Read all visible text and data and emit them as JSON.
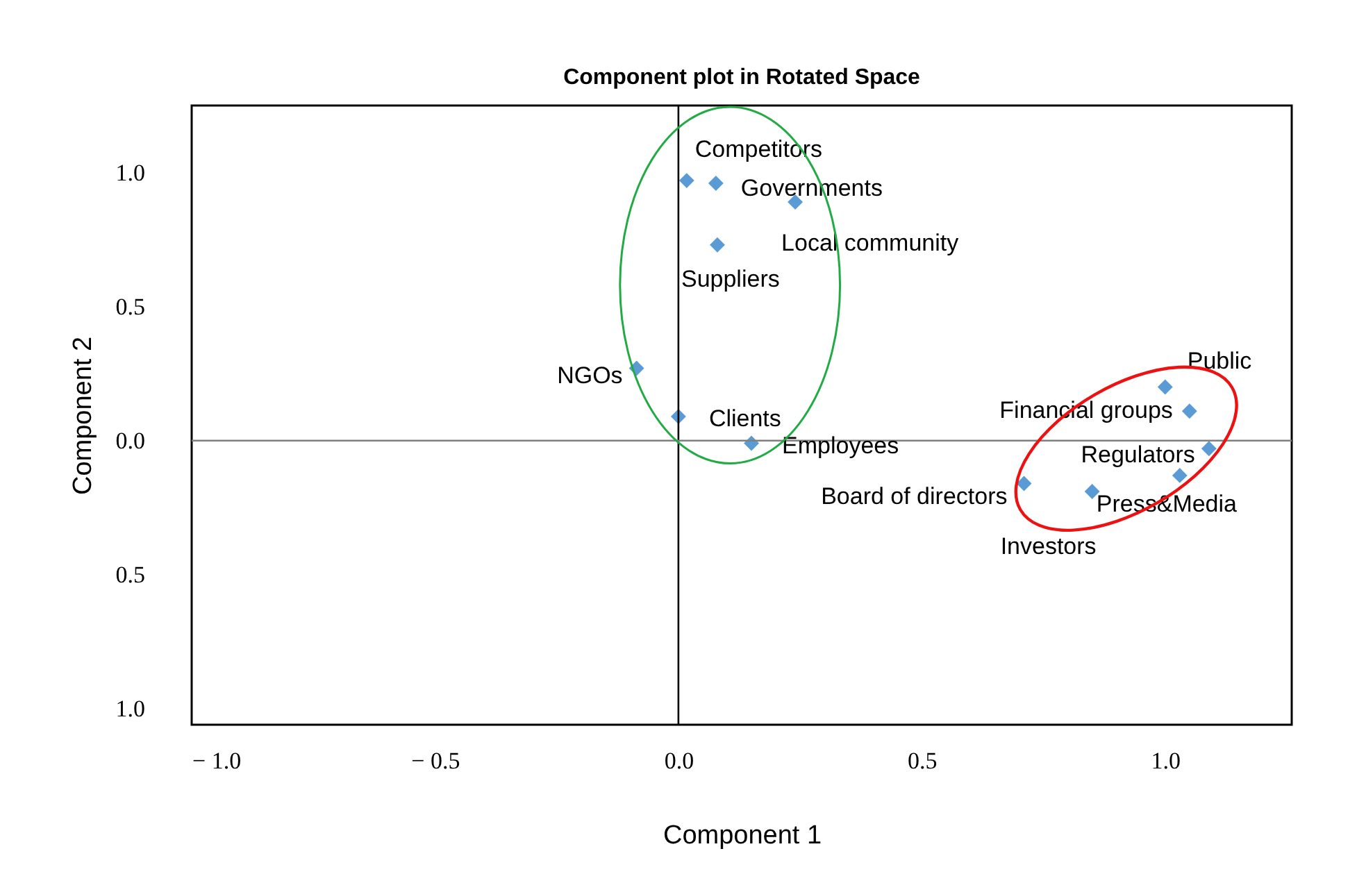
{
  "chart_data": {
    "type": "scatter",
    "title": "Component plot in Rotated Space",
    "xlabel": "Component 1",
    "ylabel": "Component 2",
    "xlim": [
      -1.0,
      1.26
    ],
    "ylim": [
      -1.06,
      1.25
    ],
    "xticks": [
      {
        "value": -1.0,
        "label": "− 1.0"
      },
      {
        "value": -0.5,
        "label": "− 0.5"
      },
      {
        "value": 0,
        "label": "0.0"
      },
      {
        "value": 0.5,
        "label": "0.5"
      },
      {
        "value": 1.0,
        "label": "1.0"
      }
    ],
    "yticks": [
      {
        "value": -1.0,
        "label": "1.0"
      },
      {
        "value": -0.5,
        "label": "0.5"
      },
      {
        "value": 0,
        "label": "0.0"
      },
      {
        "value": 0.5,
        "label": "0.5"
      },
      {
        "value": 1.0,
        "label": "1.0"
      }
    ],
    "series": [
      {
        "color": "#5b9bd5",
        "x": [
          0.017,
          0.077,
          0.24,
          0.08,
          -0.086,
          0.0,
          0.15,
          1.0,
          1.05,
          1.09,
          1.03,
          0.71,
          0.85
        ],
        "values": [
          0.97,
          0.96,
          0.89,
          0.73,
          0.27,
          0.09,
          -0.01,
          0.2,
          0.11,
          -0.03,
          -0.13,
          -0.16,
          -0.19
        ]
      }
    ],
    "annotations": [
      {
        "text": "Competitors",
        "x": 0.017,
        "y": 0.97
      },
      {
        "text": "Governments",
        "x": 0.077,
        "y": 0.96
      },
      {
        "text": "Local community",
        "x": 0.24,
        "y": 0.89
      },
      {
        "text": "Suppliers",
        "x": 0.08,
        "y": 0.73
      },
      {
        "text": "NGOs",
        "x": -0.086,
        "y": 0.27
      },
      {
        "text": "Clients",
        "x": 0.0,
        "y": 0.09
      },
      {
        "text": "Employees",
        "x": 0.15,
        "y": -0.01
      },
      {
        "text": "Public",
        "x": 1.0,
        "y": 0.2
      },
      {
        "text": "Financial groups",
        "x": 1.05,
        "y": 0.11
      },
      {
        "text": "Regulators",
        "x": 1.09,
        "y": -0.03
      },
      {
        "text": "Press&Media",
        "x": 1.03,
        "y": -0.13
      },
      {
        "text": "Board of directors",
        "x": 0.71,
        "y": -0.16
      },
      {
        "text": "Investors",
        "x": 0.85,
        "y": -0.19
      }
    ],
    "ref_lines": [
      {
        "axis": "x",
        "value": 0,
        "color": "#000000"
      },
      {
        "axis": "y",
        "value": 0,
        "color": "#808080"
      }
    ],
    "marker": "diamond",
    "grid": false
  }
}
